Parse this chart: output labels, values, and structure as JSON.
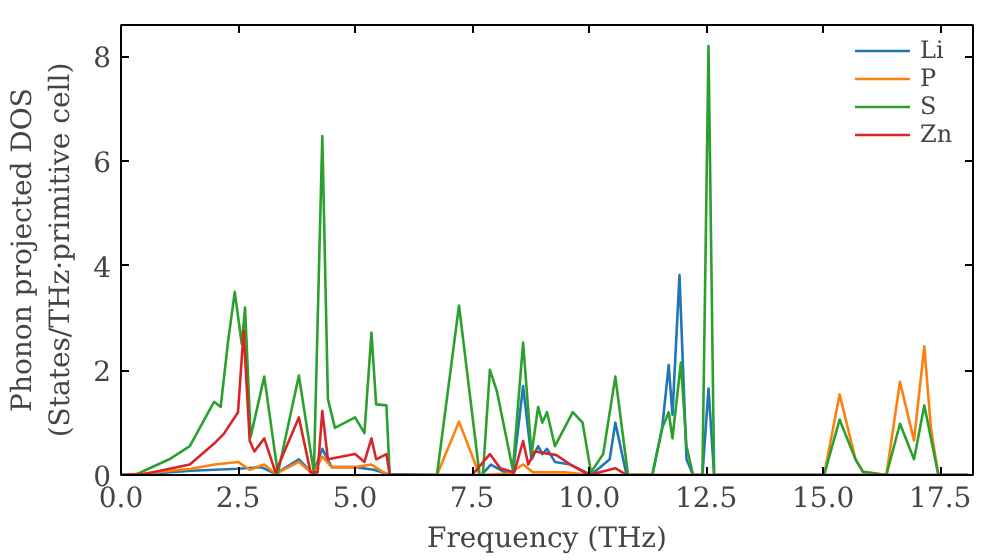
{
  "chart_data": {
    "type": "line",
    "xlabel": "Frequency (THz)",
    "ylabel": "Phonon projected DOS\n(States/THz·primitive cell)",
    "xlim": [
      0,
      18.2
    ],
    "ylim": [
      0,
      8.6
    ],
    "xticks": [
      {
        "value": 0,
        "label": "0.0"
      },
      2.5,
      {
        "value": 5,
        "label": "5.0"
      },
      7.5,
      {
        "value": 10,
        "label": "10.0"
      },
      12.5,
      {
        "value": 15,
        "label": "15.0"
      },
      17.5
    ],
    "yticks": [
      0,
      2,
      4,
      6,
      8
    ],
    "grid": false,
    "legend": "top right",
    "line_style": "solid",
    "marker": "none",
    "series": [
      {
        "name": "Li",
        "color": "#1f77b4",
        "x": [
          0,
          0.5,
          1.5,
          2.5,
          3.0,
          3.3,
          3.8,
          4.1,
          4.3,
          4.5,
          5.0,
          5.4,
          5.7,
          6.7,
          7.7,
          7.9,
          8.2,
          8.37,
          8.59,
          8.77,
          8.91,
          9.0,
          9.1,
          9.27,
          9.6,
          10.04,
          10.44,
          10.56,
          10.8,
          11.35,
          11.56,
          11.7,
          11.78,
          11.93,
          12.08,
          12.22,
          12.42,
          12.55,
          12.67,
          18.1
        ],
        "values": [
          0,
          0.02,
          0.08,
          0.12,
          0.15,
          0.02,
          0.3,
          0.02,
          0.5,
          0.15,
          0.15,
          0.1,
          0.02,
          0,
          0,
          0.2,
          0.05,
          0.02,
          1.7,
          0.3,
          0.55,
          0.4,
          0.5,
          0.25,
          0.2,
          0,
          0.3,
          1.0,
          0,
          0,
          0.9,
          2.1,
          1.15,
          3.82,
          0.3,
          0,
          0,
          1.65,
          0,
          0
        ]
      },
      {
        "name": "P",
        "color": "#ff7f0e",
        "x": [
          0,
          0.5,
          1.5,
          2.0,
          2.5,
          2.75,
          3.06,
          3.3,
          3.8,
          4.1,
          4.3,
          4.5,
          5.0,
          5.35,
          5.7,
          6.75,
          7.22,
          7.66,
          8.3,
          8.59,
          8.8,
          9.5,
          10.0,
          15.02,
          15.35,
          15.69,
          15.85,
          16.35,
          16.64,
          16.94,
          17.16,
          17.3,
          17.46,
          18.1
        ],
        "values": [
          0,
          0.03,
          0.12,
          0.2,
          0.25,
          0.1,
          0.2,
          0.02,
          0.25,
          0.02,
          0.35,
          0.15,
          0.15,
          0.2,
          0,
          0,
          1.02,
          0,
          0.03,
          0.2,
          0.05,
          0.05,
          0,
          0,
          1.54,
          0.3,
          0.06,
          0,
          1.78,
          0.66,
          2.46,
          0.9,
          0,
          0
        ]
      },
      {
        "name": "S",
        "color": "#2ca02c",
        "x": [
          0,
          0.3,
          1.03,
          1.47,
          1.99,
          2.13,
          2.28,
          2.43,
          2.58,
          2.65,
          2.77,
          3.06,
          3.35,
          3.8,
          4.12,
          4.3,
          4.42,
          4.57,
          5.0,
          5.2,
          5.35,
          5.45,
          5.67,
          5.74,
          6.75,
          7.22,
          7.66,
          7.73,
          7.88,
          8.03,
          8.37,
          8.59,
          8.77,
          8.91,
          9.0,
          9.1,
          9.27,
          9.65,
          9.86,
          10.04,
          10.3,
          10.56,
          10.83,
          11.35,
          11.56,
          11.7,
          11.78,
          11.96,
          12.08,
          12.22,
          12.42,
          12.55,
          12.67,
          15.02,
          15.35,
          15.69,
          15.85,
          16.35,
          16.64,
          16.94,
          17.16,
          17.46,
          18.1
        ],
        "values": [
          0,
          0,
          0.3,
          0.55,
          1.4,
          1.3,
          2.5,
          3.5,
          2.5,
          3.2,
          0.73,
          1.88,
          0.03,
          1.9,
          0.05,
          6.48,
          1.45,
          0.9,
          1.1,
          0.8,
          2.72,
          1.35,
          1.33,
          0,
          0,
          3.24,
          0,
          0,
          2.01,
          1.6,
          0.1,
          2.53,
          0.4,
          1.3,
          1.0,
          1.2,
          0.55,
          1.2,
          1.0,
          0.05,
          0.4,
          1.88,
          0,
          0,
          0.9,
          1.2,
          0.7,
          2.15,
          0.55,
          0,
          0,
          8.2,
          0,
          0,
          1.06,
          0.3,
          0.06,
          0,
          0.98,
          0.3,
          1.33,
          0,
          0
        ]
      },
      {
        "name": "Zn",
        "color": "#d62728",
        "x": [
          0,
          0.5,
          1.47,
          1.99,
          2.2,
          2.5,
          2.62,
          2.75,
          2.85,
          3.06,
          3.3,
          3.8,
          4.05,
          4.2,
          4.3,
          4.42,
          5.0,
          5.2,
          5.35,
          5.45,
          5.67,
          5.74,
          7.5,
          7.88,
          8.1,
          8.4,
          8.59,
          8.7,
          8.84,
          9.3,
          9.6,
          10.0,
          10.56,
          10.8,
          18.1
        ],
        "values": [
          0,
          0.02,
          0.2,
          0.6,
          0.79,
          1.2,
          2.76,
          0.65,
          0.45,
          0.7,
          0.05,
          1.1,
          0.05,
          0.05,
          1.22,
          0.3,
          0.4,
          0.25,
          0.7,
          0.3,
          0.4,
          0,
          0,
          0.4,
          0.13,
          0.05,
          0.65,
          0.2,
          0.45,
          0.38,
          0.2,
          0,
          0.13,
          0,
          0
        ]
      }
    ]
  }
}
